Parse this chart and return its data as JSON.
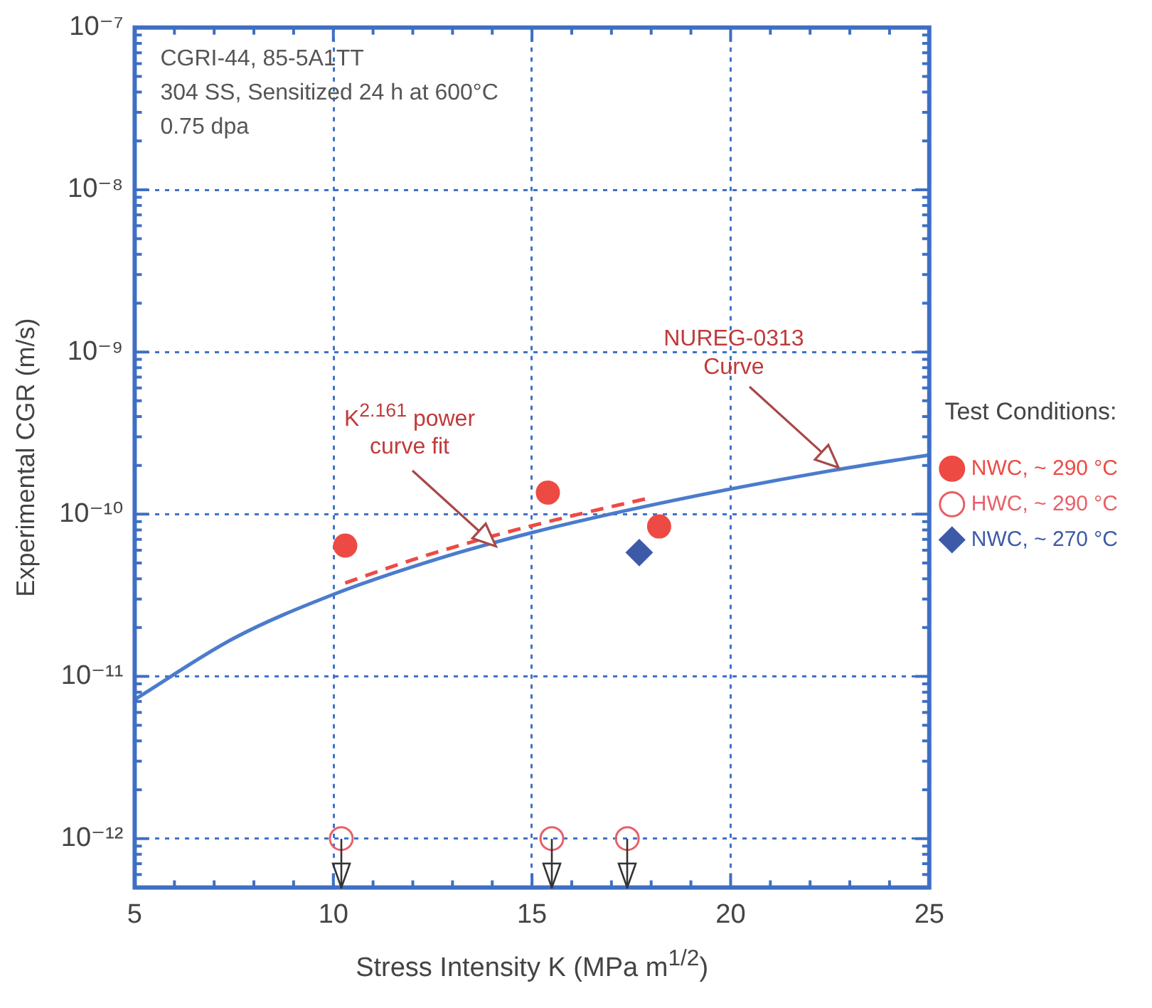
{
  "chart_data": {
    "type": "scatter",
    "xlabel": "Stress Intensity K (MPa m$^{1/2}$)",
    "ylabel": "Experimental CGR (m/s)",
    "legend_title": "Test Conditions:",
    "legend": "right",
    "log": "y",
    "grid": true,
    "xlim": [
      5,
      25
    ],
    "ylim": [
      5e-13,
      1e-07
    ],
    "xticks": [
      5,
      {
        "value": 6,
        "label": null
      },
      {
        "value": 7,
        "label": null
      },
      {
        "value": 8,
        "label": null
      },
      {
        "value": 9,
        "label": null
      },
      10,
      {
        "value": 11,
        "label": null
      },
      {
        "value": 12,
        "label": null
      },
      {
        "value": 13,
        "label": null
      },
      {
        "value": 14,
        "label": null
      },
      15,
      {
        "value": 16,
        "label": null
      },
      {
        "value": 17,
        "label": null
      },
      {
        "value": 18,
        "label": null
      },
      {
        "value": 19,
        "label": null
      },
      20,
      {
        "value": 21,
        "label": null
      },
      {
        "value": 22,
        "label": null
      },
      {
        "value": 23,
        "label": null
      },
      {
        "value": 24,
        "label": null
      },
      25
    ],
    "yticks": [
      {
        "value": 5e-13,
        "label": null
      },
      {
        "value": 6e-13,
        "label": null
      },
      {
        "value": 7e-13,
        "label": null
      },
      {
        "value": 8e-13,
        "label": null
      },
      {
        "value": 9e-13,
        "label": null
      },
      {
        "value": 1e-12,
        "label": "10⁻¹²"
      },
      {
        "value": 2e-12,
        "label": null
      },
      {
        "value": 3e-12,
        "label": null
      },
      {
        "value": 4e-12,
        "label": null
      },
      {
        "value": 5e-12,
        "label": null
      },
      {
        "value": 6e-12,
        "label": null
      },
      {
        "value": 7e-12,
        "label": null
      },
      {
        "value": 8e-12,
        "label": null
      },
      {
        "value": 9e-12,
        "label": null
      },
      {
        "value": 1e-11,
        "label": "10⁻¹¹"
      },
      {
        "value": 2e-11,
        "label": null
      },
      {
        "value": 3e-11,
        "label": null
      },
      {
        "value": 4e-11,
        "label": null
      },
      {
        "value": 5e-11,
        "label": null
      },
      {
        "value": 6e-11,
        "label": null
      },
      {
        "value": 7e-11,
        "label": null
      },
      {
        "value": 8e-11,
        "label": null
      },
      {
        "value": 9e-11,
        "label": null
      },
      {
        "value": 1e-10,
        "label": "10⁻¹⁰"
      },
      {
        "value": 2e-10,
        "label": null
      },
      {
        "value": 3e-10,
        "label": null
      },
      {
        "value": 4e-10,
        "label": null
      },
      {
        "value": 5e-10,
        "label": null
      },
      {
        "value": 6e-10,
        "label": null
      },
      {
        "value": 7e-10,
        "label": null
      },
      {
        "value": 8e-10,
        "label": null
      },
      {
        "value": 9e-10,
        "label": null
      },
      {
        "value": 1e-09,
        "label": "10⁻⁹"
      },
      {
        "value": 2e-09,
        "label": null
      },
      {
        "value": 3e-09,
        "label": null
      },
      {
        "value": 4e-09,
        "label": null
      },
      {
        "value": 5e-09,
        "label": null
      },
      {
        "value": 6e-09,
        "label": null
      },
      {
        "value": 7e-09,
        "label": null
      },
      {
        "value": 8e-09,
        "label": null
      },
      {
        "value": 9e-09,
        "label": null
      },
      {
        "value": 1e-08,
        "label": "10⁻⁸"
      },
      {
        "value": 2e-08,
        "label": null
      },
      {
        "value": 3e-08,
        "label": null
      },
      {
        "value": 4e-08,
        "label": null
      },
      {
        "value": 5e-08,
        "label": null
      },
      {
        "value": 6e-08,
        "label": null
      },
      {
        "value": 7e-08,
        "label": null
      },
      {
        "value": 8e-08,
        "label": null
      },
      {
        "value": 9e-08,
        "label": null
      },
      {
        "value": 1e-07,
        "label": "10⁻⁷"
      }
    ],
    "series": [
      {
        "name": "NWC, ~ 290 °C",
        "type": "scatter",
        "marker": "circle",
        "color": "#ee4a44",
        "x": [
          10.3,
          15.4,
          18.2
        ],
        "values": [
          6.4e-11,
          1.36e-10,
          8.4e-11
        ]
      },
      {
        "type": "line",
        "marker": "none",
        "line_style": "dashed",
        "color": "#ee4a44",
        "x": [
          10.3,
          12,
          14,
          16,
          17.9
        ],
        "values": [
          3.77e-11,
          5.24e-11,
          7.32e-11,
          9.76e-11,
          1.25e-10
        ]
      },
      {
        "name": "HWC, ~ 290 °C",
        "type": "scatter",
        "marker": "circle",
        "color": "#e86068",
        "x": [
          10.2,
          15.5,
          17.4
        ],
        "values": [
          1e-12,
          1e-12,
          1e-12
        ],
        "errors": [
          [
            5e-13,
            1e-12
          ],
          [
            5e-13,
            1e-12
          ],
          [
            5e-13,
            1e-12
          ]
        ]
      },
      {
        "name": "NWC, ~ 270 °C",
        "type": "scatter",
        "marker": "diamond",
        "color": "#3d5aa8",
        "x": [
          17.7
        ],
        "values": [
          5.8e-11
        ]
      },
      {
        "type": "line",
        "marker": "none",
        "line_style": "solid",
        "color": "#4a7ccc",
        "x": [
          5,
          7.5,
          10,
          12.5,
          15,
          17.5,
          20,
          22.5,
          25
        ],
        "values": [
          7.2e-12,
          1.72e-11,
          3.2e-11,
          5.19e-11,
          7.7e-11,
          1.07e-10,
          1.43e-10,
          1.85e-10,
          2.32e-10
        ]
      }
    ],
    "annotations": [
      "CGRI-44, 85-5A1TT",
      "304 SS, Sensitized 24 h at 600°C",
      "0.75 dpa",
      "K$^{2.161}$ power curve fit",
      "NUREG-0313 Curve"
    ]
  }
}
